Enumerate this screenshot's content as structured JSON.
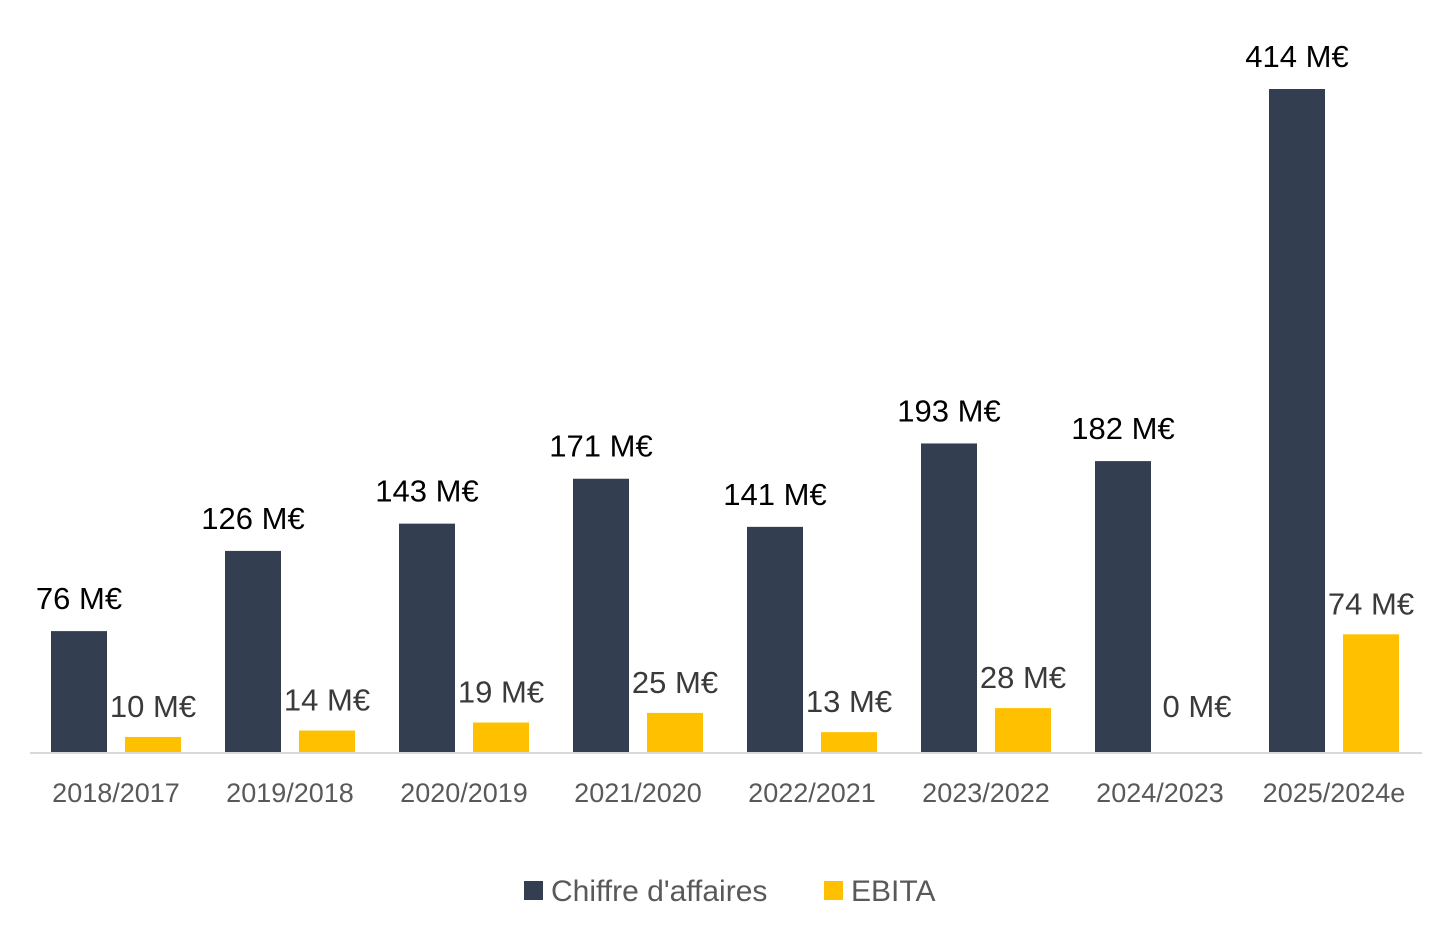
{
  "chart_data": {
    "type": "bar",
    "categories": [
      "2018/2017",
      "2019/2018",
      "2020/2019",
      "2021/2020",
      "2022/2021",
      "2023/2022",
      "2024/2023",
      "2025/2024e"
    ],
    "series": [
      {
        "name": "Chiffre d'affaires",
        "color": "#333e50",
        "values": [
          76,
          126,
          143,
          171,
          141,
          193,
          182,
          414
        ],
        "labels": [
          "76 M€",
          "126 M€",
          "143 M€",
          "171 M€",
          "141 M€",
          "193 M€",
          "182 M€",
          "414 M€"
        ]
      },
      {
        "name": "EBITA",
        "color": "#ffc000",
        "values": [
          10,
          14,
          19,
          25,
          13,
          28,
          0,
          74
        ],
        "labels": [
          "10 M€",
          "14 M€",
          "19 M€",
          "25 M€",
          "13 M€",
          "28 M€",
          "0 M€",
          "74 M€"
        ]
      }
    ],
    "ylim": [
      0,
      414
    ],
    "grid": false,
    "legend": "bottom"
  }
}
